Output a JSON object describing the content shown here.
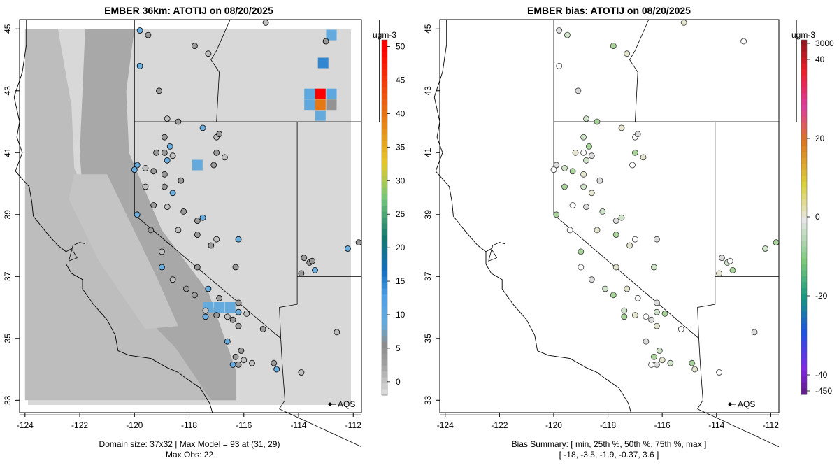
{
  "panels": [
    {
      "id": "model",
      "title": "EMBER 36km: ATOTIJ on 08/20/2025",
      "colorbar_unit": "ugm-3",
      "colorbar_ticks": [
        "50",
        "45",
        "40",
        "35",
        "30",
        "25",
        "20",
        "15",
        "10",
        "5",
        "0"
      ],
      "colorbar_values": [
        50,
        45,
        40,
        35,
        30,
        25,
        20,
        15,
        10,
        5,
        0
      ],
      "colorbar_range": [
        -2,
        51
      ],
      "footer_lines": [
        "Domain size: 37x32 | Max Model = 93 at (31, 29)",
        "Max Obs: 22"
      ]
    },
    {
      "id": "bias",
      "title": "EMBER bias: ATOTIJ on 08/20/2025",
      "colorbar_unit": "ugm-3",
      "colorbar_ticks": [
        "3000",
        "40",
        "20",
        "0",
        "-20",
        "-40",
        "-450"
      ],
      "colorbar_values": [
        3000,
        40,
        20,
        0,
        -20,
        -40,
        -450
      ],
      "footer_lines": [
        "Bias Summary: [ min, 25th %, 50th %, 75th %, max ]",
        "[ -18,   -3.5,   -1.9,   -0.37,   3.6 ]"
      ]
    }
  ],
  "axes": {
    "x_ticks": [
      "-124",
      "-122",
      "-120",
      "-118",
      "-116",
      "-114",
      "-112"
    ],
    "x_values": [
      -124,
      -122,
      -120,
      -118,
      -116,
      -114,
      -112
    ],
    "y_ticks": [
      "45",
      "43",
      "41",
      "39",
      "37",
      "35",
      "33"
    ],
    "y_values": [
      45,
      43,
      41,
      39,
      37,
      35,
      33
    ],
    "lon_range": [
      -124.2,
      -111.7
    ],
    "lat_range": [
      32.6,
      45.3
    ]
  },
  "network_label": "AQS",
  "chart_data": {
    "type": "map",
    "variable": "ATOTIJ",
    "date": "08/20/2025",
    "model_grid": "36km",
    "domain_size": "37x32",
    "max_model": 93,
    "max_model_cell": [
      31,
      29
    ],
    "max_obs": 22,
    "bias_summary": {
      "min": -18,
      "p25": -3.5,
      "median": -1.9,
      "p75": -0.37,
      "max": 3.6
    },
    "hotspot_cells": [
      {
        "lon": -113.1,
        "lat": 43.9,
        "value": 15
      },
      {
        "lon": -112.8,
        "lat": 44.8,
        "value": 9
      },
      {
        "lon": -113.6,
        "lat": 42.9,
        "value": 10
      },
      {
        "lon": -113.2,
        "lat": 42.9,
        "value": 50
      },
      {
        "lon": -112.8,
        "lat": 42.9,
        "value": 10
      },
      {
        "lon": -113.6,
        "lat": 42.55,
        "value": 10
      },
      {
        "lon": -113.2,
        "lat": 42.55,
        "value": 40
      },
      {
        "lon": -112.8,
        "lat": 42.55,
        "value": 5
      },
      {
        "lon": -113.2,
        "lat": 42.2,
        "value": 9
      },
      {
        "lon": -117.7,
        "lat": 40.6,
        "value": 9
      },
      {
        "lon": -117.3,
        "lat": 36.0,
        "value": 9
      },
      {
        "lon": -116.9,
        "lat": 36.0,
        "value": 9
      },
      {
        "lon": -116.5,
        "lat": 36.0,
        "value": 9
      }
    ],
    "stations": [
      {
        "lon": -119.8,
        "lat": 44.95
      },
      {
        "lon": -119.5,
        "lat": 44.8
      },
      {
        "lon": -117.8,
        "lat": 44.45
      },
      {
        "lon": -117.3,
        "lat": 44.2
      },
      {
        "lon": -119.8,
        "lat": 43.8
      },
      {
        "lon": -119.1,
        "lat": 43.0
      },
      {
        "lon": -118.8,
        "lat": 42.1
      },
      {
        "lon": -118.4,
        "lat": 42.0
      },
      {
        "lon": -117.5,
        "lat": 41.8
      },
      {
        "lon": -117.0,
        "lat": 41.5
      },
      {
        "lon": -116.9,
        "lat": 41.6
      },
      {
        "lon": -118.9,
        "lat": 41.5
      },
      {
        "lon": -118.7,
        "lat": 41.2
      },
      {
        "lon": -119.2,
        "lat": 41.0
      },
      {
        "lon": -118.9,
        "lat": 41.0
      },
      {
        "lon": -118.6,
        "lat": 40.9
      },
      {
        "lon": -118.8,
        "lat": 40.75
      },
      {
        "lon": -117.0,
        "lat": 41.0
      },
      {
        "lon": -116.7,
        "lat": 40.85
      },
      {
        "lon": -117.1,
        "lat": 40.6
      },
      {
        "lon": -119.9,
        "lat": 40.6
      },
      {
        "lon": -119.6,
        "lat": 40.5
      },
      {
        "lon": -119.3,
        "lat": 40.4
      },
      {
        "lon": -118.9,
        "lat": 40.3
      },
      {
        "lon": -120.0,
        "lat": 40.45
      },
      {
        "lon": -118.3,
        "lat": 40.1
      },
      {
        "lon": -118.9,
        "lat": 39.9
      },
      {
        "lon": -119.6,
        "lat": 39.9
      },
      {
        "lon": -118.6,
        "lat": 39.7
      },
      {
        "lon": -119.3,
        "lat": 39.3
      },
      {
        "lon": -118.8,
        "lat": 39.25
      },
      {
        "lon": -118.2,
        "lat": 39.1
      },
      {
        "lon": -119.9,
        "lat": 39.0
      },
      {
        "lon": -118.4,
        "lat": 38.5
      },
      {
        "lon": -119.4,
        "lat": 38.5
      },
      {
        "lon": -117.7,
        "lat": 38.8
      },
      {
        "lon": -117.5,
        "lat": 38.9
      },
      {
        "lon": -117.7,
        "lat": 38.35
      },
      {
        "lon": -117.2,
        "lat": 38.0
      },
      {
        "lon": -117.0,
        "lat": 38.2
      },
      {
        "lon": -116.2,
        "lat": 38.2
      },
      {
        "lon": -116.3,
        "lat": 37.3
      },
      {
        "lon": -119.0,
        "lat": 37.8
      },
      {
        "lon": -117.7,
        "lat": 37.3
      },
      {
        "lon": -119.0,
        "lat": 37.3
      },
      {
        "lon": -118.6,
        "lat": 36.9
      },
      {
        "lon": -118.1,
        "lat": 36.6
      },
      {
        "lon": -117.8,
        "lat": 36.4
      },
      {
        "lon": -117.3,
        "lat": 36.6
      },
      {
        "lon": -116.9,
        "lat": 36.3
      },
      {
        "lon": -116.2,
        "lat": 36.15
      },
      {
        "lon": -117.4,
        "lat": 35.9
      },
      {
        "lon": -117.4,
        "lat": 35.7
      },
      {
        "lon": -117.0,
        "lat": 35.75
      },
      {
        "lon": -116.6,
        "lat": 35.7
      },
      {
        "lon": -116.4,
        "lat": 35.6
      },
      {
        "lon": -116.2,
        "lat": 35.85
      },
      {
        "lon": -115.9,
        "lat": 35.8
      },
      {
        "lon": -116.2,
        "lat": 35.4
      },
      {
        "lon": -115.3,
        "lat": 35.3
      },
      {
        "lon": -116.6,
        "lat": 34.9
      },
      {
        "lon": -116.1,
        "lat": 34.6
      },
      {
        "lon": -116.3,
        "lat": 34.4
      },
      {
        "lon": -116.0,
        "lat": 34.3
      },
      {
        "lon": -116.4,
        "lat": 34.15
      },
      {
        "lon": -116.2,
        "lat": 34.15
      },
      {
        "lon": -115.7,
        "lat": 34.2
      },
      {
        "lon": -114.9,
        "lat": 34.2
      },
      {
        "lon": -114.8,
        "lat": 34.0
      },
      {
        "lon": -113.9,
        "lat": 33.9
      },
      {
        "lon": -113.8,
        "lat": 37.6
      },
      {
        "lon": -113.6,
        "lat": 37.45
      },
      {
        "lon": -113.4,
        "lat": 37.2
      },
      {
        "lon": -113.9,
        "lat": 37.1
      },
      {
        "lon": -113.5,
        "lat": 37.5
      },
      {
        "lon": -112.6,
        "lat": 35.2
      },
      {
        "lon": -112.2,
        "lat": 37.9
      },
      {
        "lon": -111.8,
        "lat": 38.1
      },
      {
        "lon": -115.2,
        "lat": 45.2
      },
      {
        "lon": -113.0,
        "lat": 44.6
      }
    ]
  }
}
